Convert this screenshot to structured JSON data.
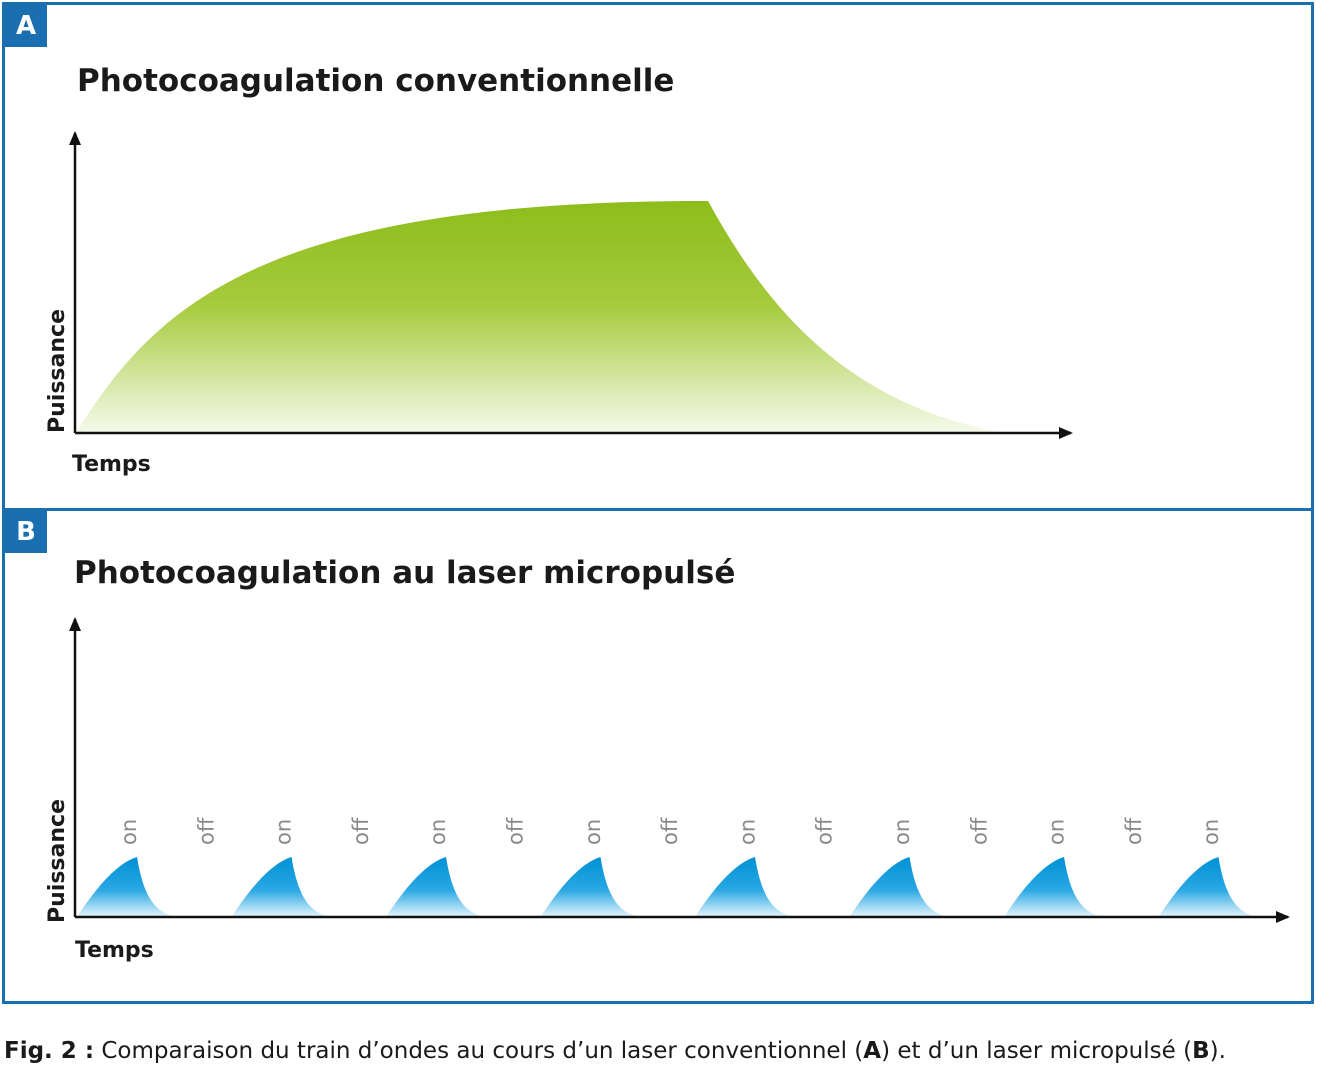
{
  "panel_a": {
    "badge": "A",
    "title": "Photocoagulation conventionnelle",
    "ylabel": "Puissance",
    "xlabel": "Temps",
    "fill_color": "#93c01f"
  },
  "panel_b": {
    "badge": "B",
    "title": "Photocoagulation au laser micropulsé",
    "ylabel": "Puissance",
    "xlabel": "Temps",
    "fill_color": "#0096d9",
    "state_labels": [
      "on",
      "off",
      "on",
      "off",
      "on",
      "off",
      "on",
      "off",
      "on",
      "off",
      "on",
      "off",
      "on",
      "off",
      "on"
    ],
    "pulse_count": 8
  },
  "caption": {
    "label": "Fig. 2 :",
    "text_before": " Comparaison du train d’ondes au cours d’un laser conventionnel (",
    "ref_a": "A",
    "text_middle": ") et d’un laser micropulsé (",
    "ref_b": "B",
    "text_after": ")."
  },
  "colors": {
    "frame": "#1a6fb0",
    "axis": "#111111",
    "state_label": "#8a8a8a"
  }
}
